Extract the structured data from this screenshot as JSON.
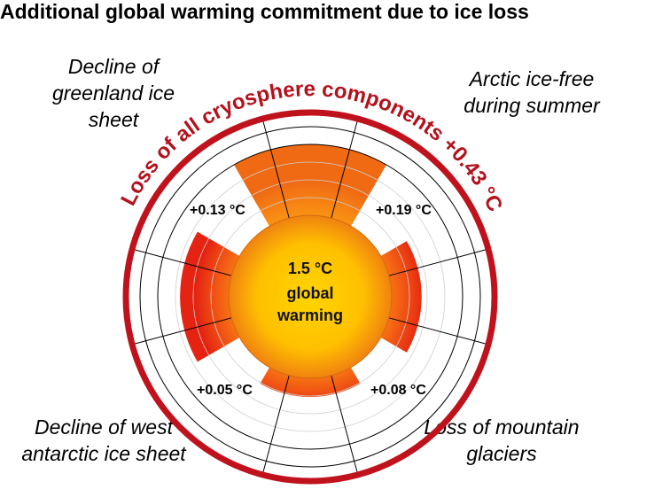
{
  "title": "Additional global warming commitment due to ice loss",
  "center_label": [
    "1.5 °C",
    "global",
    "warming"
  ],
  "outer_arc_label": "Loss of all cryosphere components +0.43 °C",
  "corner_labels": {
    "top_left": "Decline of greenland ice sheet",
    "top_right": "Arctic ice-free during summer",
    "bottom_left": "Decline of west antarctic ice sheet",
    "bottom_right": "Loss of mountain glaciers"
  },
  "colors": {
    "ring_red": "#c0121c",
    "wedge_outer": "#e42312",
    "wedge_inner": "#ff9a10",
    "orange_wedge": "#f47a16",
    "center_core": "#ffc800",
    "center_edge": "#f08a10",
    "grid": "#000000"
  },
  "chart_data": {
    "type": "polar_bar",
    "title": "Additional global warming commitment due to ice loss",
    "unit": "°C",
    "total": {
      "label": "Loss of all cryosphere components",
      "value": 0.43
    },
    "baseline": {
      "value": 1.5,
      "label": "global warming"
    },
    "categories": [
      "Decline of greenland ice sheet",
      "Arctic ice-free during summer",
      "Loss of mountain glaciers",
      "Decline of west antarctic ice sheet"
    ],
    "values": [
      0.13,
      0.19,
      0.08,
      0.05
    ],
    "value_labels": [
      "+0.13 °C",
      "+0.19 °C",
      "+0.08 °C",
      "+0.05 °C"
    ]
  }
}
